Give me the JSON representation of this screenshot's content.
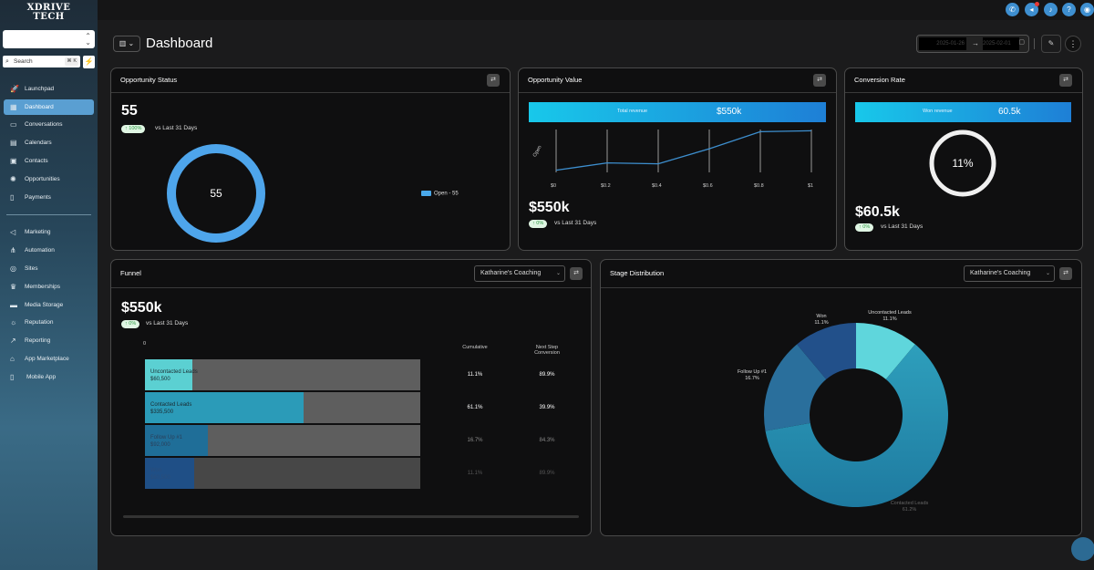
{
  "brand": {
    "logo_line1": "XDRIVE",
    "logo_line2": "TECH"
  },
  "sidebar": {
    "search_placeholder": "Search",
    "search_shortcut": "⌘ K",
    "items": [
      {
        "label": "Launchpad",
        "icon": "rocket-icon"
      },
      {
        "label": "Dashboard",
        "icon": "grid-icon",
        "active": true
      },
      {
        "label": "Conversations",
        "icon": "chat-icon"
      },
      {
        "label": "Calendars",
        "icon": "calendar-icon"
      },
      {
        "label": "Contacts",
        "icon": "contacts-icon"
      },
      {
        "label": "Opportunities",
        "icon": "opportunities-icon"
      },
      {
        "label": "Payments",
        "icon": "payments-icon"
      },
      {
        "label": "Marketing",
        "icon": "megaphone-icon"
      },
      {
        "label": "Automation",
        "icon": "automation-icon"
      },
      {
        "label": "Sites",
        "icon": "globe-icon"
      },
      {
        "label": "Memberships",
        "icon": "crown-icon"
      },
      {
        "label": "Media Storage",
        "icon": "storage-icon"
      },
      {
        "label": "Reputation",
        "icon": "reputation-icon"
      },
      {
        "label": "Reporting",
        "icon": "reporting-icon"
      },
      {
        "label": "App Marketplace",
        "icon": "marketplace-icon"
      },
      {
        "label": "Mobile App",
        "icon": "mobile-icon"
      }
    ]
  },
  "header": {
    "title": "Dashboard",
    "date_from": "2025-01-26",
    "date_to": "2025-02-01"
  },
  "cards": {
    "opportunity_status": {
      "title": "Opportunity Status",
      "value": "55",
      "change": "100%",
      "vs": "vs Last 31 Days",
      "center": "55",
      "legend": "Open - 55"
    },
    "opportunity_value": {
      "title": "Opportunity Value",
      "bar_label": "Total revenue",
      "bar_value": "$550k",
      "value": "$550k",
      "change": "0%",
      "vs": "vs Last 31 Days",
      "y_label": "Open",
      "x_ticks": [
        "$0",
        "$0.2",
        "$0.4",
        "$0.6",
        "$0.8",
        "$1"
      ]
    },
    "conversion_rate": {
      "title": "Conversion Rate",
      "bar_label": "Won revenue",
      "bar_value": "60.5k",
      "center": "11%",
      "value": "$60.5k",
      "change": "0%",
      "vs": "vs Last 31 Days"
    },
    "funnel": {
      "title": "Funnel",
      "select": "Katharine's Coaching",
      "value": "$550k",
      "change": "0%",
      "vs": "vs Last 31 Days",
      "axis_zero": "0",
      "col_cumulative": "Cumulative",
      "col_next_line1": "Next Step",
      "col_next_line2": "Conversion",
      "stages": [
        {
          "name": "Uncontacted Leads",
          "amount": "$60,500",
          "cumulative": "11.1%",
          "next": "89.9%"
        },
        {
          "name": "Contacted Leads",
          "amount": "$335,500",
          "cumulative": "61.1%",
          "next": "39.9%"
        },
        {
          "name": "Follow Up #1",
          "amount": "$92,000",
          "cumulative": "16.7%",
          "next": "84.3%"
        },
        {
          "name": "Won",
          "amount": "$60,500",
          "cumulative": "11.1%",
          "next": "89.9%"
        }
      ]
    },
    "stage_distribution": {
      "title": "Stage Distribution",
      "select": "Katharine's Coaching",
      "slices": [
        {
          "name": "Uncontacted Leads",
          "pct": "11.1%",
          "value": 11.1,
          "color": "#5fd6dc"
        },
        {
          "name": "Contacted Leads",
          "pct": "61.2%",
          "value": 61.2,
          "color": "#2b8fae"
        },
        {
          "name": "Follow Up #1",
          "pct": "16.7%",
          "value": 16.7,
          "color": "#2a6f9c"
        },
        {
          "name": "Won",
          "pct": "11.1%",
          "value": 11.1,
          "color": "#22508a"
        }
      ]
    }
  },
  "chart_data": [
    {
      "type": "line",
      "title": "Opportunity Value",
      "x": [
        0,
        0.2,
        0.4,
        0.6,
        0.8,
        1.0
      ],
      "series": [
        {
          "values": [
            0.05,
            0.22,
            0.2,
            0.55,
            0.95,
            0.97
          ]
        }
      ],
      "ylabel": "Open"
    },
    {
      "type": "pie",
      "title": "Stage Distribution",
      "categories": [
        "Uncontacted Leads",
        "Contacted Leads",
        "Follow Up #1",
        "Won"
      ],
      "values": [
        11.1,
        61.2,
        16.7,
        11.1
      ]
    },
    {
      "type": "bar",
      "title": "Funnel",
      "categories": [
        "Uncontacted Leads",
        "Contacted Leads",
        "Follow Up #1",
        "Won"
      ],
      "values": [
        60500,
        335500,
        92000,
        60500
      ]
    }
  ]
}
